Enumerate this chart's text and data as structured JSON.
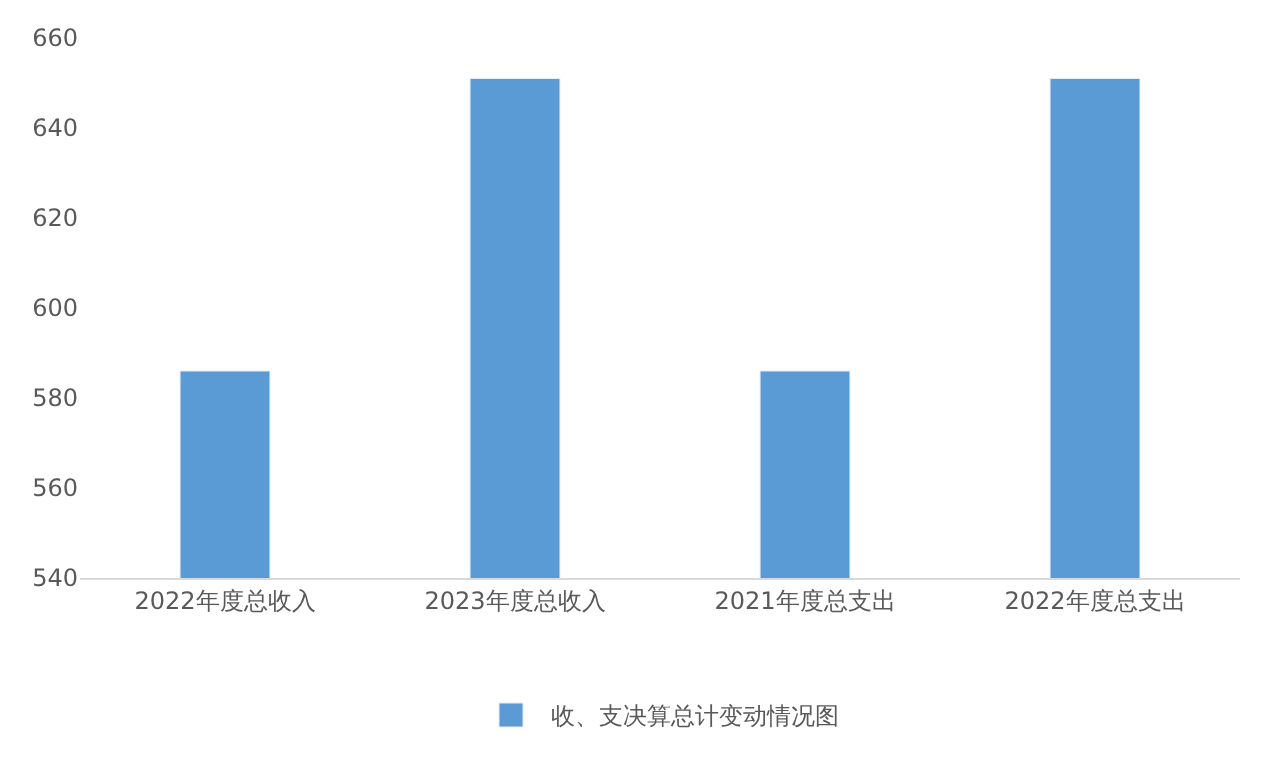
{
  "chart_data": {
    "type": "bar",
    "categories": [
      "2022年度总收入",
      "2023年度总收入",
      "2021年度总支出",
      "2022年度总支出"
    ],
    "series": [
      {
        "name": "收、支决算总计变动情况图",
        "color": "#5b9bd5",
        "values": [
          586,
          651,
          586,
          651
        ]
      }
    ],
    "ylim": [
      540,
      660
    ],
    "yticks": [
      540,
      560,
      580,
      600,
      620,
      640,
      660
    ],
    "grid": false,
    "legend": "bottom"
  }
}
